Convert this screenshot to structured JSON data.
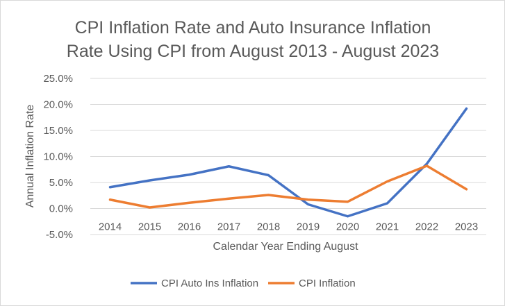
{
  "chart_data": {
    "type": "line",
    "title_lines": [
      "CPI Inflation Rate and Auto Insurance Inflation",
      "Rate Using CPI from August 2013 - August 2023"
    ],
    "xlabel": "Calendar Year Ending August",
    "ylabel": "Annual Inflation Rate",
    "categories": [
      "2014",
      "2015",
      "2016",
      "2017",
      "2018",
      "2019",
      "2020",
      "2021",
      "2022",
      "2023"
    ],
    "ylim": [
      -5.0,
      25.0
    ],
    "yticks": [
      -5.0,
      0.0,
      5.0,
      10.0,
      15.0,
      20.0,
      25.0
    ],
    "ytick_labels": [
      "-5.0%",
      "0.0%",
      "5.0%",
      "10.0%",
      "15.0%",
      "20.0%",
      "25.0%"
    ],
    "gridlines": true,
    "legend_position": "bottom",
    "series": [
      {
        "name": "CPI Auto Ins Inflation",
        "color": "#4472c4",
        "values": [
          4.1,
          5.4,
          6.5,
          8.1,
          6.4,
          0.8,
          -1.5,
          1.0,
          8.6,
          19.2
        ]
      },
      {
        "name": "CPI Inflation",
        "color": "#ed7d31",
        "values": [
          1.7,
          0.2,
          1.1,
          1.9,
          2.6,
          1.7,
          1.3,
          5.2,
          8.2,
          3.7
        ]
      }
    ]
  }
}
